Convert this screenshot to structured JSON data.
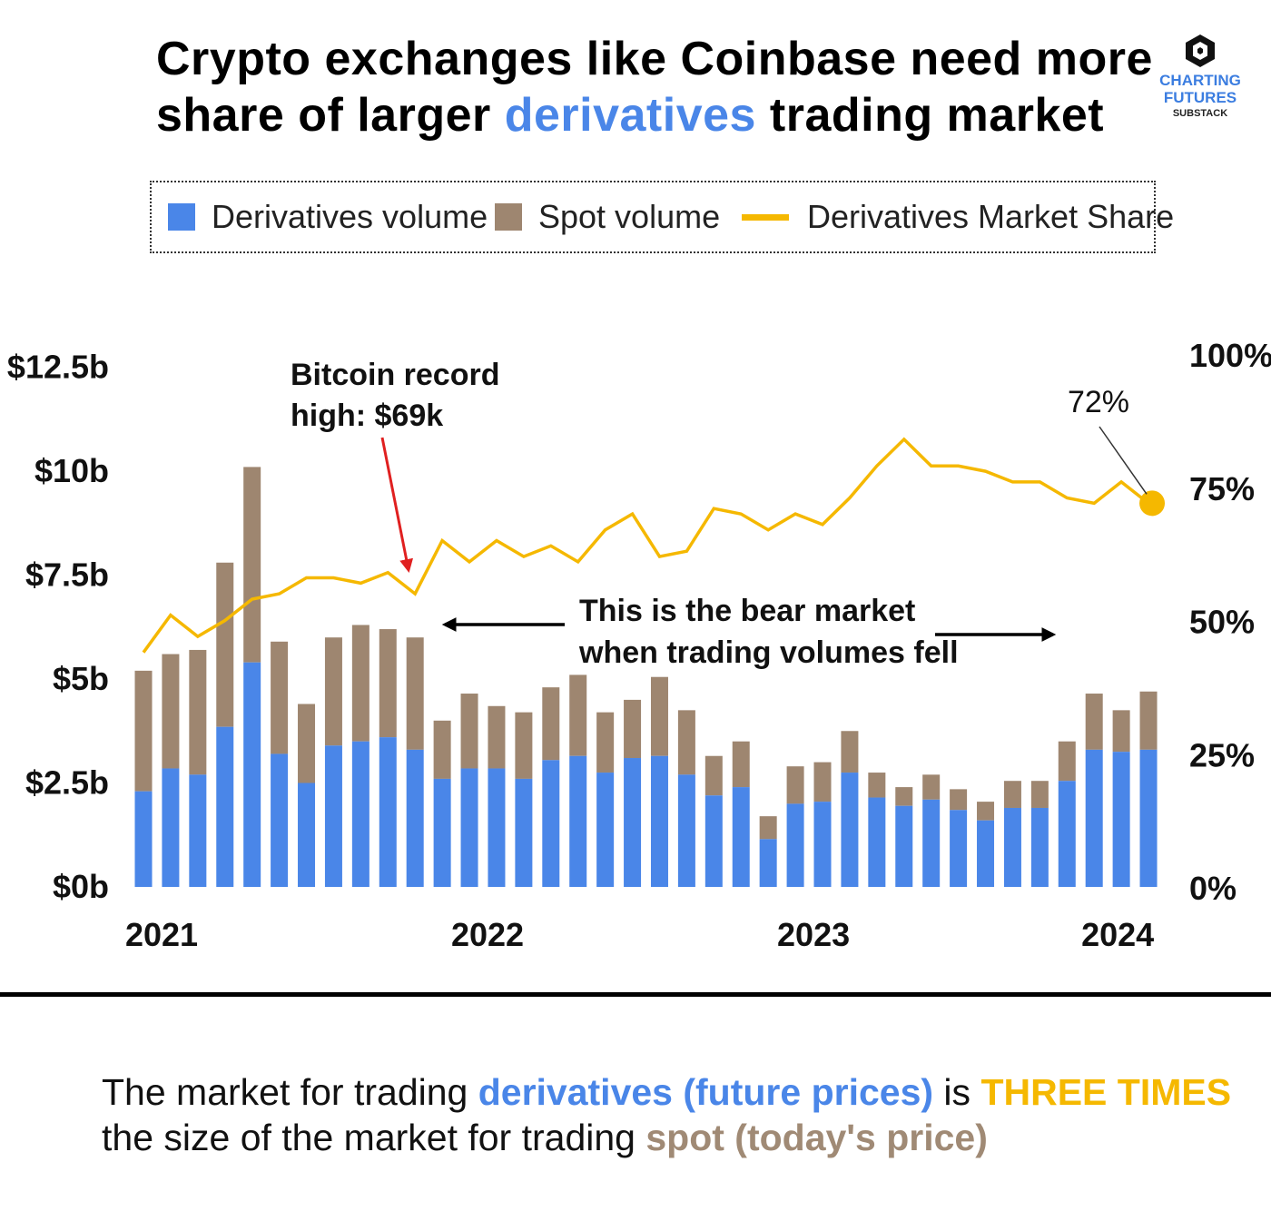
{
  "title": {
    "part1": "Crypto exchanges like Coinbase need more share of larger ",
    "highlight": "derivatives",
    "part2": " trading market"
  },
  "brand": {
    "line1": "CHARTING",
    "line2": "FUTURES",
    "line3": "SUBSTACK"
  },
  "colors": {
    "derivatives": "#4a86e8",
    "spot": "#9e8670",
    "share": "#f5b800",
    "text": "#000000"
  },
  "legend": {
    "derivatives": "Derivatives volume",
    "spot": "Spot volume",
    "share": "Derivatives Market Share"
  },
  "annotations": {
    "btc_line1": "Bitcoin record",
    "btc_line2": "high: $69k",
    "bear_line1": "This is the bear market",
    "bear_line2": "when trading volumes fell",
    "last_label": "72%"
  },
  "caption": {
    "t1": "The market for trading ",
    "blue": "derivatives (future prices)",
    "t2": " is ",
    "gold": "THREE TIMES",
    "t3": "the size of the market for trading ",
    "brown": "spot (today's price)"
  },
  "chart_data": {
    "type": "bar",
    "stacked": true,
    "title": "Crypto exchanges like Coinbase need more share of larger derivatives trading market",
    "x_ticks": [
      "2021",
      "2022",
      "2023",
      "2024"
    ],
    "x_tick_index": [
      0,
      12,
      24,
      36
    ],
    "left_axis": {
      "ticks": [
        "$0b",
        "$2.5b",
        "$5b",
        "$7.5b",
        "$10b",
        "$12.5b"
      ],
      "range": [
        0,
        12.5
      ],
      "unit": "billions USD"
    },
    "right_axis": {
      "ticks": [
        "0%",
        "25%",
        "50%",
        "75%",
        "100%"
      ],
      "range": [
        0,
        100
      ]
    },
    "series": [
      {
        "name": "Derivatives volume",
        "axis": "left",
        "values": [
          2.3,
          2.85,
          2.7,
          3.85,
          5.4,
          3.2,
          2.5,
          3.4,
          3.5,
          3.6,
          3.3,
          2.6,
          2.85,
          2.85,
          2.6,
          3.05,
          3.15,
          2.75,
          3.1,
          3.15,
          2.7,
          2.2,
          2.4,
          1.15,
          2.0,
          2.05,
          2.75,
          2.15,
          1.95,
          2.1,
          1.85,
          1.6,
          1.9,
          1.9,
          2.55,
          3.3,
          3.25,
          3.3
        ]
      },
      {
        "name": "Spot volume",
        "axis": "left",
        "values": [
          2.9,
          2.75,
          3.0,
          3.95,
          4.7,
          2.7,
          1.9,
          2.6,
          2.8,
          2.6,
          2.7,
          1.4,
          1.8,
          1.5,
          1.6,
          1.75,
          1.95,
          1.45,
          1.4,
          1.9,
          1.55,
          0.95,
          1.1,
          0.55,
          0.9,
          0.95,
          1.0,
          0.6,
          0.45,
          0.6,
          0.5,
          0.45,
          0.65,
          0.65,
          0.95,
          1.35,
          1.0,
          1.4
        ]
      },
      {
        "name": "Derivatives Market Share",
        "axis": "right",
        "type": "line",
        "values": [
          44,
          51,
          47,
          50,
          54,
          55,
          58,
          58,
          57,
          59,
          55,
          65,
          61,
          65,
          62,
          64,
          61,
          67,
          70,
          62,
          63,
          71,
          70,
          67,
          70,
          68,
          73,
          79,
          84,
          79,
          79,
          78,
          76,
          76,
          73,
          72,
          76,
          72
        ]
      }
    ]
  }
}
